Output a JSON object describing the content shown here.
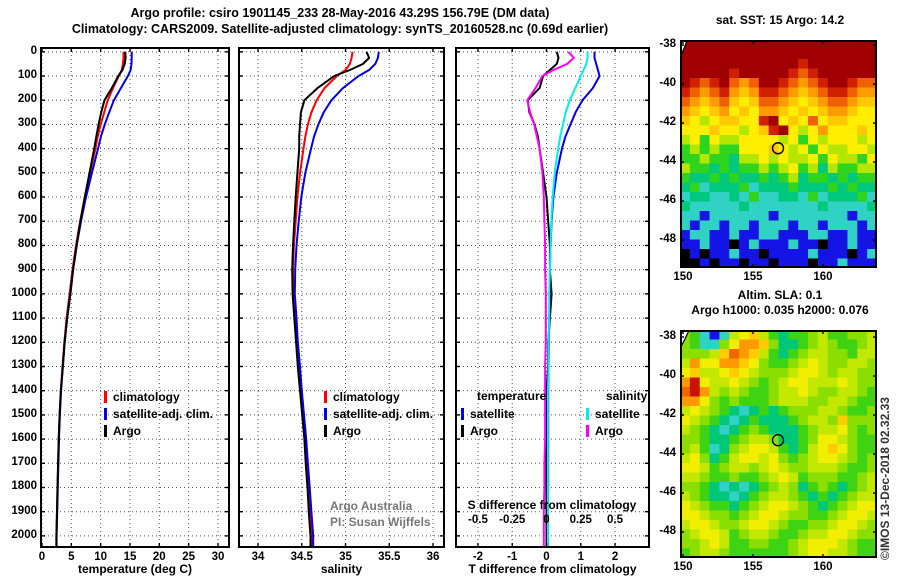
{
  "titles": {
    "line1": "Argo profile: csiro 1901145_233 28-May-2016 43.29S 156.79E (DM data)",
    "line2": "Climatology: CARS2009. Satellite-adjusted climatology: synTS_20160528.nc (0.69d earlier)"
  },
  "watermark": "©IMOS 13-Dec-2018 02.32.33",
  "chart_data": [
    {
      "id": "temperature-profile",
      "type": "line",
      "orientation": "depth-profile",
      "xlabel": "temperature (deg C)",
      "xlim": [
        -0.34,
        32.05
      ],
      "ylim": [
        -20,
        2050
      ],
      "xticks": [
        0,
        5,
        10,
        15,
        20,
        25,
        30
      ],
      "xtick_labels": [
        "0",
        "5",
        "10",
        "15",
        "20",
        "25",
        "30"
      ],
      "yticks": [
        0,
        100,
        200,
        300,
        400,
        500,
        600,
        700,
        800,
        900,
        1000,
        1100,
        1200,
        1300,
        1400,
        1500,
        1600,
        1700,
        1800,
        1900,
        2000
      ],
      "ytick_labels": [
        "0",
        "100",
        "200",
        "300",
        "400",
        "500",
        "600",
        "700",
        "800",
        "900",
        "1000",
        "1100",
        "1200",
        "1300",
        "1400",
        "1500",
        "1600",
        "1700",
        "1800",
        "1900",
        "2000"
      ],
      "grid": "dotted",
      "depths": [
        0,
        25,
        50,
        75,
        100,
        150,
        200,
        250,
        300,
        350,
        400,
        500,
        600,
        700,
        800,
        900,
        1000,
        1100,
        1200,
        1300,
        1400,
        1500,
        1600,
        1700,
        1800,
        1900,
        2000
      ],
      "series": [
        {
          "name": "climatology",
          "color": "#ff0000",
          "values": [
            13.9,
            13.9,
            13.8,
            13.6,
            13.1,
            12.1,
            11.2,
            10.6,
            10.0,
            9.5,
            9.1,
            8.2,
            7.3,
            6.5,
            5.8,
            5.2,
            4.7,
            4.2,
            3.8,
            3.5,
            3.2,
            3.0,
            2.85,
            2.75,
            2.65,
            2.55,
            2.45
          ]
        },
        {
          "name": "satellite-adj. clim.",
          "color": "#0000ee",
          "values": [
            15.3,
            15.3,
            15.25,
            15.1,
            14.65,
            13.45,
            12.25,
            11.45,
            10.7,
            10.05,
            9.55,
            8.5,
            7.5,
            6.65,
            5.92,
            5.3,
            4.8,
            4.28,
            3.87,
            3.56,
            3.25,
            3.05,
            2.9,
            2.8,
            2.7,
            2.59,
            2.49
          ]
        },
        {
          "name": "Argo",
          "color": "#000000",
          "values": [
            14.2,
            14.25,
            14.1,
            13.7,
            13.0,
            11.9,
            10.65,
            10.1,
            9.65,
            9.25,
            8.9,
            8.1,
            7.3,
            6.55,
            5.9,
            5.3,
            4.85,
            4.3,
            3.85,
            3.55,
            3.2,
            3.0,
            2.85,
            2.75,
            2.65,
            2.55,
            2.45
          ]
        }
      ],
      "legend": [
        {
          "label": "climatology",
          "color": "#ff0000"
        },
        {
          "label": "satellite-adj. clim.",
          "color": "#0000ee"
        },
        {
          "label": "Argo",
          "color": "#000000"
        }
      ]
    },
    {
      "id": "salinity-profile",
      "type": "line",
      "orientation": "depth-profile",
      "xlabel": "salinity",
      "xlim": [
        33.771,
        36.137
      ],
      "ylim": [
        -20,
        2050
      ],
      "xticks": [
        34,
        34.5,
        35,
        35.5,
        36
      ],
      "xtick_labels": [
        "34",
        "34.5",
        "35",
        "35.5",
        "36"
      ],
      "yticks": [
        0,
        100,
        200,
        300,
        400,
        500,
        600,
        700,
        800,
        900,
        1000,
        1100,
        1200,
        1300,
        1400,
        1500,
        1600,
        1700,
        1800,
        1900,
        2000
      ],
      "grid": "dotted",
      "depths": [
        0,
        25,
        50,
        75,
        100,
        150,
        200,
        250,
        300,
        350,
        400,
        500,
        600,
        700,
        800,
        900,
        1000,
        1100,
        1200,
        1300,
        1400,
        1500,
        1600,
        1700,
        1800,
        1900,
        2000
      ],
      "series": [
        {
          "name": "climatology",
          "color": "#ff0000",
          "values": [
            35.08,
            35.07,
            35.05,
            35.0,
            34.9,
            34.76,
            34.67,
            34.61,
            34.57,
            34.54,
            34.52,
            34.48,
            34.45,
            34.43,
            34.41,
            34.4,
            34.4,
            34.42,
            34.44,
            34.465,
            34.49,
            34.515,
            34.54,
            34.56,
            34.58,
            34.6,
            34.62
          ]
        },
        {
          "name": "satellite-adj. clim.",
          "color": "#0000ee",
          "values": [
            35.38,
            35.37,
            35.34,
            35.27,
            35.15,
            34.97,
            34.84,
            34.75,
            34.69,
            34.64,
            34.605,
            34.54,
            34.495,
            34.465,
            34.44,
            34.425,
            34.42,
            34.44,
            34.455,
            34.48,
            34.5,
            34.525,
            34.55,
            34.57,
            34.59,
            34.61,
            34.63
          ]
        },
        {
          "name": "Argo",
          "color": "#000000",
          "values": [
            35.24,
            35.27,
            35.2,
            35.05,
            34.87,
            34.68,
            34.53,
            34.49,
            34.48,
            34.47,
            34.47,
            34.45,
            34.43,
            34.415,
            34.4,
            34.39,
            34.395,
            34.415,
            34.435,
            34.455,
            34.48,
            34.505,
            34.53,
            34.545,
            34.565,
            34.58,
            34.6
          ]
        }
      ],
      "legend": [
        {
          "label": "climatology",
          "color": "#ff0000"
        },
        {
          "label": "satellite-adj. clim.",
          "color": "#0000ee"
        },
        {
          "label": "Argo",
          "color": "#000000"
        }
      ],
      "annotation": {
        "line1": "Argo Australia",
        "line2": "PI: Susan Wijffels"
      }
    },
    {
      "id": "difference-profile",
      "type": "line",
      "orientation": "depth-profile",
      "xlabel": "T difference from climatology",
      "xlim": [
        -2.67,
        3.02
      ],
      "ylim": [
        -20,
        2050
      ],
      "xticks": [
        -2,
        -1,
        0,
        1,
        2
      ],
      "xtick_labels": [
        "-2",
        "-1",
        "0",
        "1",
        "2"
      ],
      "yticks": [
        0,
        100,
        200,
        300,
        400,
        500,
        600,
        700,
        800,
        900,
        1000,
        1100,
        1200,
        1300,
        1400,
        1500,
        1600,
        1700,
        1800,
        1900,
        2000
      ],
      "grid": "dotted",
      "depths": [
        0,
        25,
        50,
        75,
        100,
        150,
        200,
        250,
        300,
        350,
        400,
        500,
        600,
        700,
        800,
        900,
        1000,
        1100,
        1200,
        1300,
        1400,
        1500,
        1600,
        1700,
        1800,
        1900,
        2000
      ],
      "inner_axis": {
        "label": "S difference from climatology",
        "ticks": [
          -0.5,
          -0.25,
          0,
          0.25,
          0.5
        ],
        "tick_labels": [
          "-0.5",
          "-0.25",
          "0",
          "0.25",
          "0.5"
        ],
        "scale_to_T_axis": 4
      },
      "series": [
        {
          "name": "temperature satellite",
          "color": "#0000ee",
          "scale": 1,
          "values": [
            1.4,
            1.4,
            1.45,
            1.5,
            1.55,
            1.35,
            1.05,
            0.85,
            0.7,
            0.55,
            0.45,
            0.3,
            0.2,
            0.15,
            0.12,
            0.1,
            0.1,
            0.08,
            0.07,
            0.06,
            0.05,
            0.05,
            0.05,
            0.05,
            0.05,
            0.04,
            0.04
          ]
        },
        {
          "name": "temperature Argo",
          "color": "#000000",
          "scale": 1,
          "values": [
            0.3,
            0.35,
            0.3,
            0.1,
            -0.1,
            -0.2,
            -0.55,
            -0.5,
            -0.35,
            -0.25,
            -0.2,
            -0.1,
            0,
            0.05,
            0.1,
            0.1,
            0.15,
            0.1,
            0.05,
            0.05,
            0,
            0,
            0,
            0,
            0,
            0,
            0
          ]
        },
        {
          "name": "salinity satellite",
          "color": "#00eeee",
          "scale": 4,
          "values": [
            0.3,
            0.3,
            0.29,
            0.27,
            0.25,
            0.21,
            0.17,
            0.14,
            0.12,
            0.1,
            0.085,
            0.06,
            0.045,
            0.035,
            0.03,
            0.025,
            0.02,
            0.02,
            0.015,
            0.015,
            0.01,
            0.01,
            0.01,
            0.01,
            0.01,
            0.01,
            0.01
          ]
        },
        {
          "name": "salinity Argo",
          "color": "#ff00ff",
          "scale": 4,
          "values": [
            0.16,
            0.2,
            0.15,
            0.05,
            -0.03,
            -0.08,
            -0.14,
            -0.12,
            -0.09,
            -0.07,
            -0.05,
            -0.03,
            -0.02,
            -0.015,
            -0.01,
            -0.01,
            -0.005,
            -0.005,
            -0.005,
            -0.01,
            -0.01,
            -0.01,
            -0.01,
            -0.015,
            -0.015,
            -0.02,
            -0.02
          ]
        }
      ],
      "legend_groups": [
        {
          "title": "temperature",
          "items": [
            {
              "label": "satellite",
              "color": "#0000ee"
            },
            {
              "label": "Argo",
              "color": "#000000"
            }
          ]
        },
        {
          "title": "salinity",
          "items": [
            {
              "label": "satellite",
              "color": "#00eeee"
            },
            {
              "label": "Argo",
              "color": "#ff00ff"
            }
          ]
        }
      ]
    },
    {
      "id": "sst-map",
      "type": "heatmap",
      "title": "sat. SST: 15 Argo: 14.2",
      "xlim": [
        149.79,
        163.86
      ],
      "ylim": [
        -49.43,
        -37.74
      ],
      "xticks": [
        150,
        155,
        160
      ],
      "xtick_labels": [
        "150",
        "155",
        "160"
      ],
      "yticks": [
        -38,
        -40,
        -42,
        -44,
        -46,
        -48
      ],
      "ytick_labels": [
        "-38",
        "-40",
        "-42",
        "-44",
        "-46",
        "-48"
      ],
      "marker": {
        "lon": 156.79,
        "lat": -43.29
      },
      "palette": {
        "0": "#a00000",
        "1": "#d02000",
        "2": "#f06000",
        "3": "#ff9b00",
        "4": "#ffc800",
        "5": "#ffee00",
        "6": "#b4e600",
        "7": "#2fd41f",
        "8": "#00c87d",
        "9": "#2fd2c3",
        "A": "#1414e6",
        "K": "#000000"
      },
      "grid_rows": [
        "00000000000000000000",
        "00000000000000000000",
        "00000000000010000000",
        "00000100000121000000",
        "01210232001232100122",
        "12321343112343211233",
        "23432454223454322344",
        "34543545334545433455",
        "45654455105452544555",
        "55545565410565355545",
        "65756655556575655565",
        "76767755545657566556",
        "77677866565665756675",
        "67787877676576867766",
        "78878788787687787877",
        "87988879888788878788",
        "98899897998897988879",
        "89999989999999899998",
        "99A999999A9999999A99",
        "9A99A99A999A99A999A9",
        "A99AA9AA99AAA99AA9AA",
        "AA9AAKA9AAA9AAKAA9AA",
        "KAKAA9AAKAAAA9AAAKA9",
        "KKAKAAKAAKAAAKAA9AAA"
      ]
    },
    {
      "id": "sla-map",
      "type": "heatmap",
      "title_line1": "Altim. SLA: 0.1",
      "title_line2": "Argo h1000: 0.035 h2000: 0.076",
      "xlim": [
        149.79,
        163.86
      ],
      "ylim": [
        -49.33,
        -37.64
      ],
      "xticks": [
        150,
        155,
        160
      ],
      "xtick_labels": [
        "150",
        "155",
        "160"
      ],
      "yticks": [
        -38,
        -40,
        -42,
        -44,
        -46,
        -48
      ],
      "ytick_labels": [
        "-38",
        "-40",
        "-42",
        "-44",
        "-46",
        "-48"
      ],
      "marker": {
        "lon": 156.79,
        "lat": -43.29
      },
      "palette": {
        "0": "#cc1100",
        "1": "#ee6600",
        "2": "#ff9900",
        "3": "#ffcc00",
        "4": "#f2ee00",
        "5": "#c3e800",
        "6": "#8ade00",
        "7": "#3ed414",
        "8": "#00c878",
        "9": "#2fd2c3",
        "A": "#1414e6",
        "K": "#000000"
      },
      "grid_rows": [
        "679A9543578776577665",
        "67996422368876567765",
        "66653123578765566755",
        "52442234677654566556",
        "43554345666544565566",
        "20455456765445554566",
        "10256567765545665567",
        "22467677765556655677",
        "54567898787666556776",
        "45678987888765563666",
        "56789876788876554676",
        "66788765568876445677",
        "65798654457875434677",
        "54687544546765445676",
        "44576556545665556776",
        "55677677654576667765",
        "66789898765687678765",
        "56788987655678787655",
        "45677876544567876544",
        "44566765445667765445",
        "54456654456776654456",
        "65445765567765544566",
        "66545776677654445677",
        "76556777777654455677"
      ]
    }
  ]
}
